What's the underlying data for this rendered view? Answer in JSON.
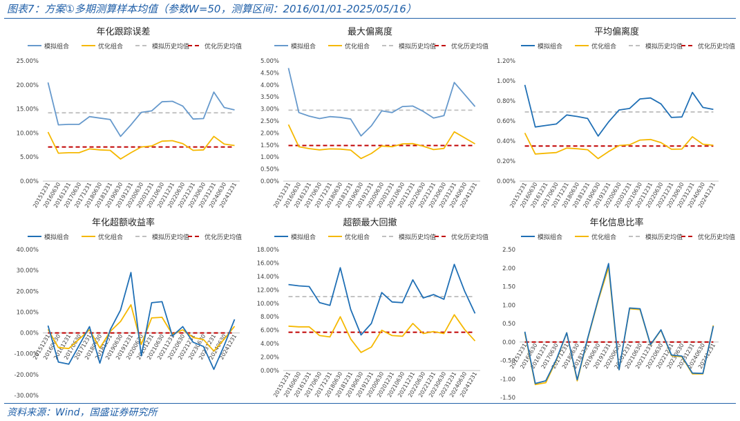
{
  "page": {
    "title": "图表7：方案①多期测算样本均值（参数W=50，测算区间：2016/01/01-2025/05/16）",
    "source": "资料来源：Wind，国盛证券研究所"
  },
  "legend_labels": [
    "模拟组合",
    "优化组合",
    "模拟历史均值",
    "优化历史均值"
  ],
  "colors": {
    "sim_light": "#6699cc",
    "sim_dark": "#1f6fb5",
    "opt": "#f5b800",
    "sim_mean": "#bfbfbf",
    "opt_mean": "#c00000",
    "axis_text": "#404040",
    "title_blue": "#1f5fa8"
  },
  "chart_data": [
    {
      "type": "line",
      "title": "年化跟踪误差",
      "categories": [
        "20151231",
        "20160630",
        "20161231",
        "20170630",
        "20171231",
        "20180630",
        "20181231",
        "20190630",
        "20191231",
        "20200630",
        "20201231",
        "20210630",
        "20211231",
        "20220630",
        "20221231",
        "20230630",
        "20231231",
        "20240630",
        "20241231"
      ],
      "series": [
        {
          "name": "模拟组合",
          "values": [
            20.5,
            11.7,
            11.8,
            11.8,
            13.4,
            13.1,
            12.8,
            9.3,
            11.7,
            14.3,
            14.6,
            16.5,
            16.6,
            15.6,
            12.9,
            13.0,
            18.5,
            15.3,
            14.8
          ]
        },
        {
          "name": "优化组合",
          "values": [
            10.2,
            5.8,
            5.9,
            5.9,
            6.7,
            6.5,
            6.4,
            4.6,
            5.9,
            7.1,
            7.3,
            8.3,
            8.4,
            7.8,
            6.4,
            6.5,
            9.3,
            7.7,
            7.4
          ]
        }
      ],
      "means": {
        "模拟历史均值": 14.2,
        "优化历史均值": 7.1
      },
      "yticks": [
        "0.00%",
        "5.00%",
        "10.00%",
        "15.00%",
        "20.00%",
        "25.00%"
      ],
      "ylim": [
        0,
        25
      ]
    },
    {
      "type": "line",
      "title": "最大偏离度",
      "categories": [
        "20151231",
        "20160630",
        "20161231",
        "20170630",
        "20171231",
        "20180630",
        "20181231",
        "20190630",
        "20191231",
        "20200630",
        "20201231",
        "20210630",
        "20211231",
        "20220630",
        "20221231",
        "20230630",
        "20231231",
        "20240630",
        "20241231"
      ],
      "series": [
        {
          "name": "模拟组合",
          "values": [
            4.7,
            2.85,
            2.7,
            2.6,
            2.68,
            2.65,
            2.58,
            1.88,
            2.3,
            2.92,
            2.85,
            3.1,
            3.12,
            2.9,
            2.62,
            2.72,
            4.1,
            3.6,
            3.1
          ]
        },
        {
          "name": "优化组合",
          "values": [
            2.35,
            1.43,
            1.35,
            1.3,
            1.34,
            1.33,
            1.29,
            0.94,
            1.15,
            1.46,
            1.43,
            1.55,
            1.56,
            1.45,
            1.31,
            1.36,
            2.05,
            1.8,
            1.55
          ]
        }
      ],
      "means": {
        "模拟历史均值": 2.95,
        "优化历史均值": 1.48
      },
      "yticks": [
        "0.00%",
        "0.50%",
        "1.00%",
        "1.50%",
        "2.00%",
        "2.50%",
        "3.00%",
        "3.50%",
        "4.00%",
        "4.50%",
        "5.00%"
      ],
      "ylim": [
        0,
        5
      ]
    },
    {
      "type": "line",
      "title": "平均偏离度",
      "categories": [
        "20151231",
        "20160630",
        "20161231",
        "20170630",
        "20171231",
        "20180630",
        "20181231",
        "20190630",
        "20191231",
        "20200630",
        "20201231",
        "20210630",
        "20211231",
        "20220630",
        "20221231",
        "20230630",
        "20231231",
        "20240630",
        "20241231"
      ],
      "series": [
        {
          "name": "模拟组合",
          "values": [
            0.96,
            0.54,
            0.555,
            0.57,
            0.66,
            0.645,
            0.625,
            0.45,
            0.59,
            0.71,
            0.725,
            0.82,
            0.83,
            0.77,
            0.635,
            0.64,
            0.885,
            0.735,
            0.715
          ]
        },
        {
          "name": "优化组合",
          "values": [
            0.48,
            0.27,
            0.278,
            0.285,
            0.33,
            0.323,
            0.313,
            0.225,
            0.295,
            0.355,
            0.363,
            0.41,
            0.415,
            0.385,
            0.318,
            0.32,
            0.443,
            0.368,
            0.358
          ]
        }
      ],
      "means": {
        "模拟历史均值": 0.69,
        "优化历史均值": 0.35
      },
      "yticks": [
        "0.00%",
        "0.20%",
        "0.40%",
        "0.60%",
        "0.80%",
        "1.00%",
        "1.20%"
      ],
      "ylim": [
        0,
        1.2
      ]
    },
    {
      "type": "line",
      "title": "年化超额收益率",
      "categories": [
        "20151231",
        "20160630",
        "20161231",
        "20170630",
        "20171231",
        "20180630",
        "20181231",
        "20190630",
        "20191231",
        "20200630",
        "20201231",
        "20210630",
        "20211231",
        "20220630",
        "20221231",
        "20230630",
        "20231231",
        "20240630",
        "20241231"
      ],
      "series": [
        {
          "name": "模拟组合",
          "values": [
            3.5,
            -14.0,
            -15.0,
            -6.0,
            3.0,
            -14.5,
            1.5,
            11.0,
            29.0,
            -11.0,
            14.5,
            15.0,
            -1.5,
            3.0,
            -4.5,
            -6.5,
            -17.5,
            -6.0,
            6.5
          ]
        },
        {
          "name": "优化组合",
          "values": [
            1.7,
            -7.0,
            -7.5,
            -3.0,
            1.5,
            -7.2,
            0.7,
            5.5,
            13.5,
            -5.5,
            7.2,
            7.5,
            -0.7,
            1.5,
            -2.2,
            -3.2,
            -8.7,
            -3.0,
            3.2
          ]
        }
      ],
      "means": {
        "模拟历史均值": 0.0,
        "优化历史均值": 0.0
      },
      "yticks": [
        "-30.00%",
        "-20.00%",
        "-10.00%",
        "0.00%",
        "10.00%",
        "20.00%",
        "30.00%",
        "40.00%"
      ],
      "ylim": [
        -30,
        40
      ]
    },
    {
      "type": "line",
      "title": "超额最大回撤",
      "categories": [
        "20151231",
        "20160630",
        "20161231",
        "20170630",
        "20171231",
        "20180630",
        "20181231",
        "20190630",
        "20191231",
        "20200630",
        "20201231",
        "20210630",
        "20211231",
        "20220630",
        "20221231",
        "20230630",
        "20231231",
        "20240630",
        "20241231"
      ],
      "series": [
        {
          "name": "模拟组合",
          "values": [
            12.8,
            12.6,
            12.5,
            10.1,
            9.7,
            15.3,
            9.1,
            5.3,
            7.0,
            11.6,
            10.2,
            10.1,
            13.5,
            10.8,
            11.3,
            10.6,
            15.8,
            11.8,
            8.5
          ]
        },
        {
          "name": "优化组合",
          "values": [
            6.6,
            6.5,
            6.5,
            5.2,
            5.0,
            8.0,
            4.7,
            2.7,
            3.5,
            6.0,
            5.2,
            5.1,
            7.0,
            5.5,
            5.8,
            5.5,
            8.3,
            6.1,
            4.4
          ]
        }
      ],
      "means": {
        "模拟历史均值": 11.0,
        "优化历史均值": 5.7
      },
      "yticks": [
        "0.00%",
        "2.00%",
        "4.00%",
        "6.00%",
        "8.00%",
        "10.00%",
        "12.00%",
        "14.00%",
        "16.00%",
        "18.00%"
      ],
      "ylim": [
        0,
        18
      ]
    },
    {
      "type": "line",
      "title": "年化信息比率",
      "categories": [
        "20151231",
        "20160630",
        "20161231",
        "20170630",
        "20171231",
        "20180630",
        "20181231",
        "20190630",
        "20191231",
        "20200630",
        "20201231",
        "20210630",
        "20211231",
        "20220630",
        "20221231",
        "20230630",
        "20231231",
        "20240630",
        "20241231"
      ],
      "series": [
        {
          "name": "模拟组合",
          "values": [
            0.28,
            -1.12,
            -1.05,
            -0.48,
            0.25,
            -1.02,
            0.1,
            1.15,
            2.12,
            -0.75,
            0.92,
            0.9,
            -0.07,
            0.33,
            -0.35,
            -0.38,
            -0.84,
            -0.85,
            0.43
          ]
        },
        {
          "name": "优化组合",
          "values": [
            0.25,
            -1.15,
            -1.1,
            -0.5,
            0.25,
            -1.05,
            0.08,
            1.12,
            2.02,
            -0.75,
            0.9,
            0.88,
            -0.08,
            0.32,
            -0.37,
            -0.4,
            -0.86,
            -0.86,
            0.45
          ]
        }
      ],
      "means": {
        "模拟历史均值": 0.0,
        "优化历史均值": 0.0
      },
      "yticks": [
        "-1.50",
        "-1.00",
        "-0.50",
        "0.00",
        "0.50",
        "1.00",
        "1.50",
        "2.00",
        "2.50"
      ],
      "ylim": [
        -1.5,
        2.5
      ]
    }
  ]
}
